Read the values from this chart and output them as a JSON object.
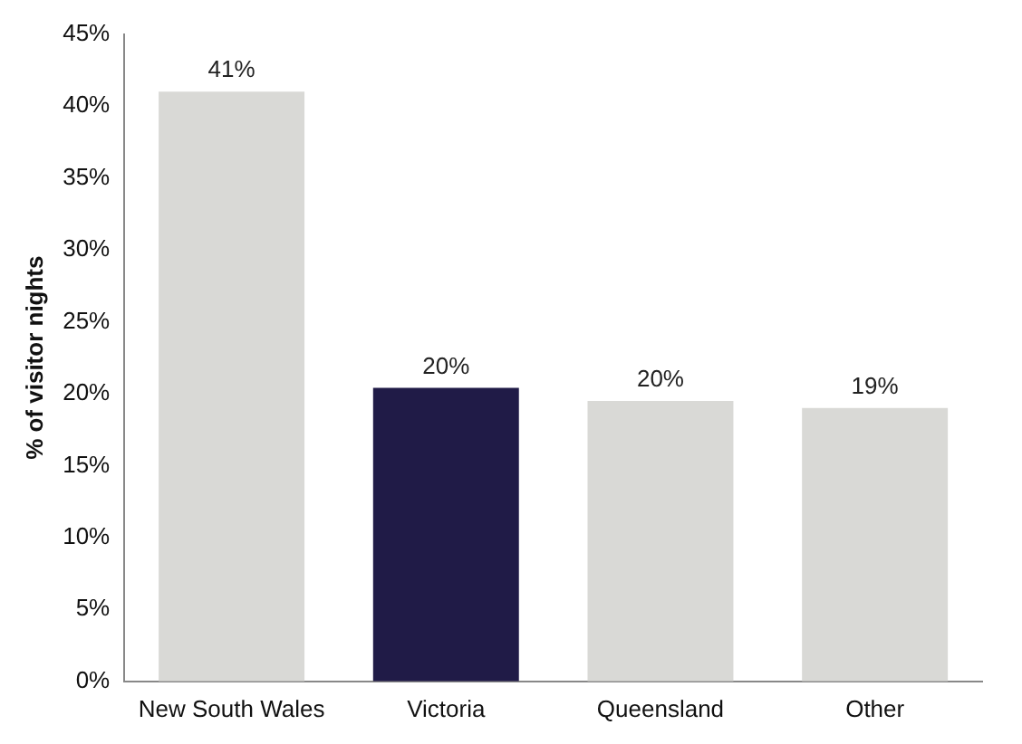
{
  "chart_data": {
    "type": "bar",
    "ylabel": "% of visitor nights",
    "categories": [
      "New South Wales",
      "Victoria",
      "Queensland",
      "Other"
    ],
    "values": [
      41,
      20.4,
      19.5,
      19
    ],
    "colors": [
      "#d9d9d6",
      "#201b47",
      "#d9d9d6",
      "#d9d9d6"
    ],
    "value_labels": [
      "41%",
      "20%",
      "20%",
      "19%"
    ],
    "ylim": [
      0,
      45
    ],
    "yticks": [
      {
        "value": 0,
        "label": "0%"
      },
      {
        "value": 5,
        "label": "5%"
      },
      {
        "value": 10,
        "label": "10%"
      },
      {
        "value": 15,
        "label": "15%"
      },
      {
        "value": 20,
        "label": "20%"
      },
      {
        "value": 25,
        "label": "25%"
      },
      {
        "value": 30,
        "label": "30%"
      },
      {
        "value": 35,
        "label": "35%"
      },
      {
        "value": 40,
        "label": "40%"
      },
      {
        "value": 45,
        "label": "45%"
      }
    ],
    "grid": false,
    "legend": false
  }
}
